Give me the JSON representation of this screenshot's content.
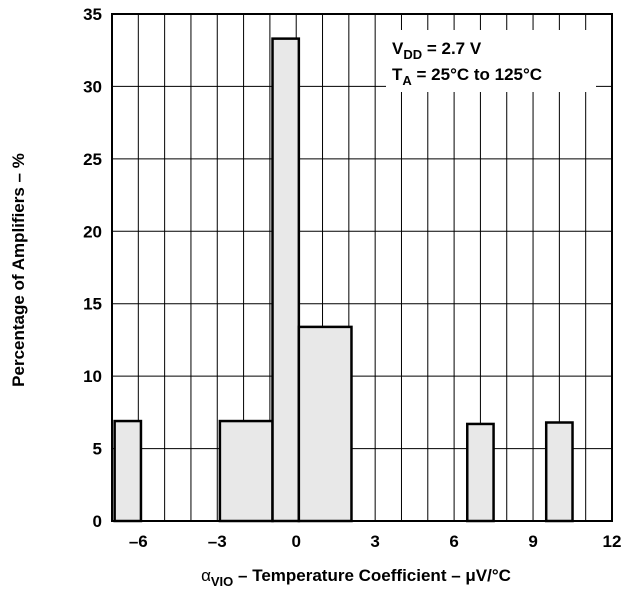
{
  "chart_data": {
    "type": "bar",
    "subtype": "histogram",
    "xlabel": {
      "symbol": "α",
      "subscript": "VIO",
      "rest": " – Temperature Coefficient – μV/°C"
    },
    "ylabel": "Percentage of Amplifiers – %",
    "xlim": [
      -7,
      12
    ],
    "ylim": [
      0,
      35
    ],
    "x_ticks": [
      -6,
      -3,
      0,
      3,
      6,
      9,
      12
    ],
    "x_tick_labels": [
      "–6",
      "–3",
      "0",
      "3",
      "6",
      "9",
      "12"
    ],
    "y_ticks": [
      0,
      5,
      10,
      15,
      20,
      25,
      30,
      35
    ],
    "y_tick_labels": [
      "0",
      "5",
      "10",
      "15",
      "20",
      "25",
      "30",
      "35"
    ],
    "x_grid_step": 1,
    "y_grid_step": 5,
    "grid": true,
    "bar_fill": "#e8e8e8",
    "bars": [
      {
        "x0": -6.9,
        "x1": -5.9,
        "value": 6.9
      },
      {
        "x0": -2.9,
        "x1": -0.9,
        "value": 6.9
      },
      {
        "x0": -0.9,
        "x1": 0.1,
        "value": 33.3
      },
      {
        "x0": 0.1,
        "x1": 2.1,
        "value": 13.4
      },
      {
        "x0": 6.5,
        "x1": 7.5,
        "value": 6.7
      },
      {
        "x0": 9.5,
        "x1": 10.5,
        "value": 6.8
      }
    ],
    "annotation": {
      "line1": {
        "prefix": "V",
        "sub": "DD",
        "rest": " = 2.7 V"
      },
      "line2": {
        "prefix": "T",
        "sub": "A",
        "rest": " = 25°C to 125°C"
      }
    }
  }
}
